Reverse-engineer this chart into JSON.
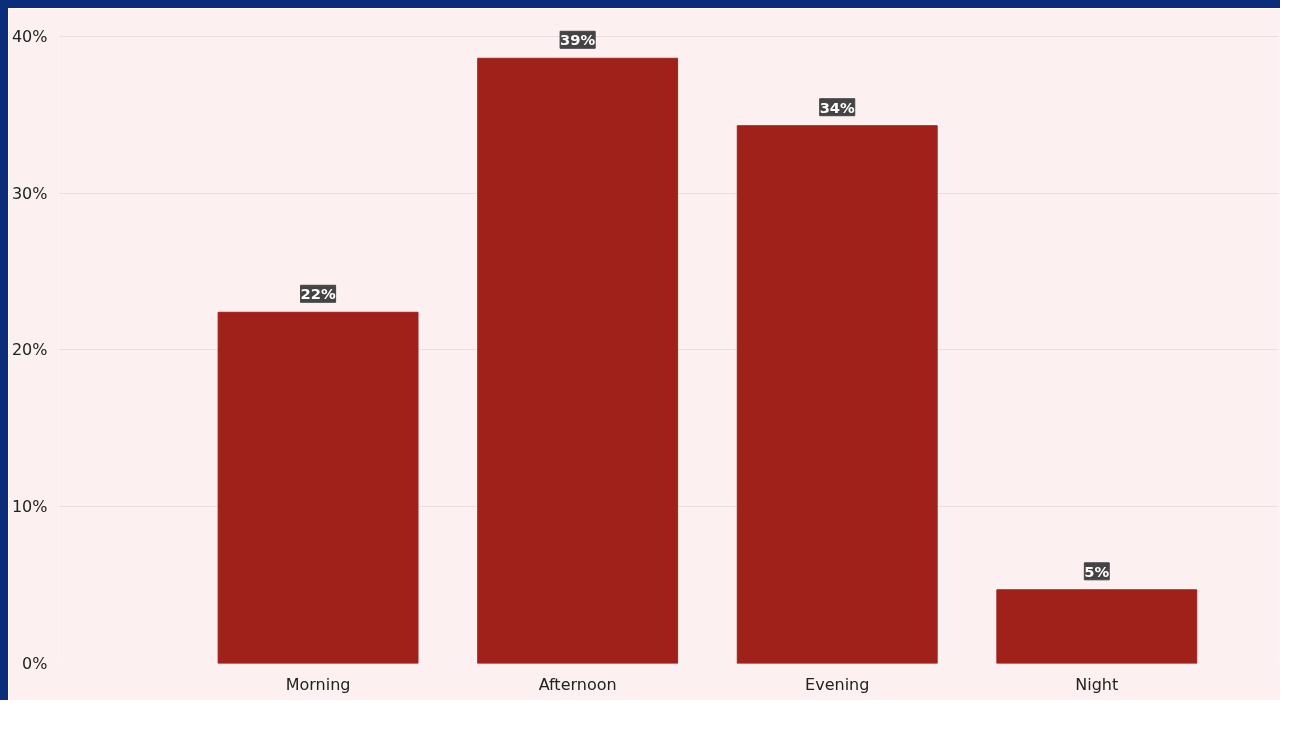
{
  "chart_data": {
    "type": "bar",
    "categories": [
      "Morning",
      "Afternoon",
      "Evening",
      "Night"
    ],
    "values": [
      22.4,
      38.6,
      34.3,
      4.7
    ],
    "value_labels": [
      "22%",
      "39%",
      "34%",
      "5%"
    ],
    "color": "#a0201a",
    "ylim": [
      0,
      40.5
    ],
    "yticks": [
      {
        "value": 0,
        "label": "0%"
      },
      {
        "value": 10,
        "label": "10%"
      },
      {
        "value": 20,
        "label": "20%"
      },
      {
        "value": 30,
        "label": "30%"
      },
      {
        "value": 40,
        "label": "40%"
      }
    ],
    "grid": "y"
  }
}
